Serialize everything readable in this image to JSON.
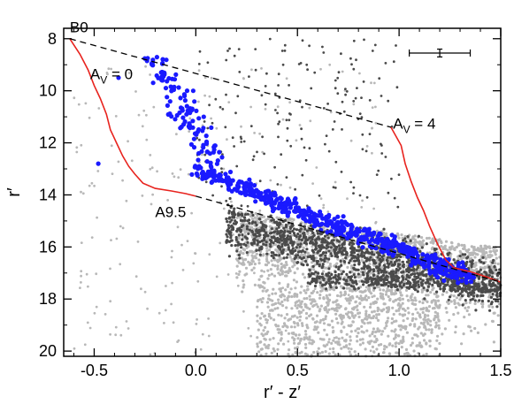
{
  "chart_data": {
    "type": "scatter",
    "title": "",
    "xlabel": "r′ - z′",
    "ylabel": "r′",
    "xlim": [
      -0.65,
      1.5
    ],
    "ylim": [
      20.2,
      7.6
    ],
    "y_inverted": true,
    "xticks": [
      "-0.5",
      "0.0",
      "0.5",
      "1.0",
      "1.5"
    ],
    "xtick_values": [
      -0.5,
      0.0,
      0.5,
      1.0,
      1.5
    ],
    "yticks": [
      "8",
      "10",
      "12",
      "14",
      "16",
      "18",
      "20"
    ],
    "ytick_values": [
      8,
      10,
      12,
      14,
      16,
      18,
      20
    ],
    "grid": false,
    "legend": "none",
    "colors": {
      "field_light": "#b8b8b8",
      "field_dark": "#4a4a4a",
      "members": "#1a1aff",
      "isochrone": "#e8231e",
      "reddening_vector": "#000000"
    },
    "series": [
      {
        "kind": "scatter",
        "color": "light gray",
        "description_values": "dense field population, densest at r′-z′ 0.4–1.2, r′ 15–20",
        "clusters": [
          {
            "x": [
              0.2,
              1.5
            ],
            "y": [
              14.5,
              20.2
            ],
            "count": 1700
          },
          {
            "x": [
              -0.6,
              0.9
            ],
            "y": [
              9.0,
              20.2
            ],
            "count": 250
          }
        ]
      },
      {
        "kind": "scatter",
        "color": "dark gray",
        "clusters": [
          {
            "x": [
              0.15,
              1.5
            ],
            "y": [
              15.0,
              19.5
            ],
            "count": 1200,
            "band_slope": 1.7
          },
          {
            "x": [
              0.0,
              1.0
            ],
            "y": [
              8.0,
              14.5
            ],
            "count": 180
          }
        ]
      },
      {
        "kind": "scatter",
        "color": "blue",
        "main_locus": {
          "x_start": -0.02,
          "x_end": 1.35,
          "y_start": 13.0,
          "y_end": 17.2,
          "count": 520
        },
        "upper_sequence": {
          "x": [
            -0.25,
            0.35
          ],
          "y": [
            8.7,
            13.6
          ],
          "count": 130
        },
        "isolated": [
          {
            "x": -0.48,
            "y": 12.8
          },
          {
            "x": -0.38,
            "y": 9.5
          }
        ]
      }
    ],
    "lines": [
      {
        "name": "A_V = 0 isochrone",
        "color": "red",
        "points": [
          [
            -0.62,
            8.0
          ],
          [
            -0.57,
            8.6
          ],
          [
            -0.53,
            9.2
          ],
          [
            -0.5,
            9.8
          ],
          [
            -0.47,
            10.3
          ],
          [
            -0.44,
            10.9
          ],
          [
            -0.42,
            11.5
          ],
          [
            -0.39,
            12.0
          ],
          [
            -0.36,
            12.5
          ],
          [
            -0.33,
            12.9
          ],
          [
            -0.3,
            13.2
          ],
          [
            -0.26,
            13.55
          ],
          [
            -0.2,
            13.75
          ],
          [
            -0.12,
            13.85
          ],
          [
            -0.05,
            13.95
          ],
          [
            0.0,
            14.05
          ]
        ]
      },
      {
        "name": "A_V = 4 isochrone",
        "color": "red",
        "points": [
          [
            0.96,
            11.4
          ],
          [
            1.01,
            12.1
          ],
          [
            1.03,
            12.8
          ],
          [
            1.06,
            13.5
          ],
          [
            1.09,
            14.1
          ],
          [
            1.12,
            14.6
          ],
          [
            1.15,
            15.2
          ],
          [
            1.19,
            15.9
          ],
          [
            1.23,
            16.5
          ],
          [
            1.27,
            16.8
          ],
          [
            1.35,
            16.95
          ],
          [
            1.43,
            17.15
          ],
          [
            1.5,
            17.35
          ]
        ]
      },
      {
        "name": "reddening vector from B0",
        "style": "dashed",
        "color": "black",
        "points": [
          [
            -0.62,
            8.0
          ],
          [
            0.96,
            11.4
          ]
        ]
      },
      {
        "name": "reddening vector from A9.5",
        "style": "dashed",
        "color": "black",
        "points": [
          [
            0.0,
            14.05
          ],
          [
            1.5,
            17.35
          ]
        ]
      }
    ],
    "error_bar": {
      "x": 1.2,
      "y": 8.55,
      "xerr": 0.15,
      "yerr": 0.15
    },
    "annotations": [
      {
        "text": "B0",
        "x": -0.62,
        "y": 7.75
      },
      {
        "text": "A",
        "sub": "V",
        "tail": " = 0",
        "x": -0.52,
        "y": 9.55
      },
      {
        "text": "A9.5",
        "x": -0.2,
        "y": 14.85
      },
      {
        "text": "A",
        "sub": "V",
        "tail": " = 4",
        "x": 0.97,
        "y": 11.45
      }
    ]
  }
}
